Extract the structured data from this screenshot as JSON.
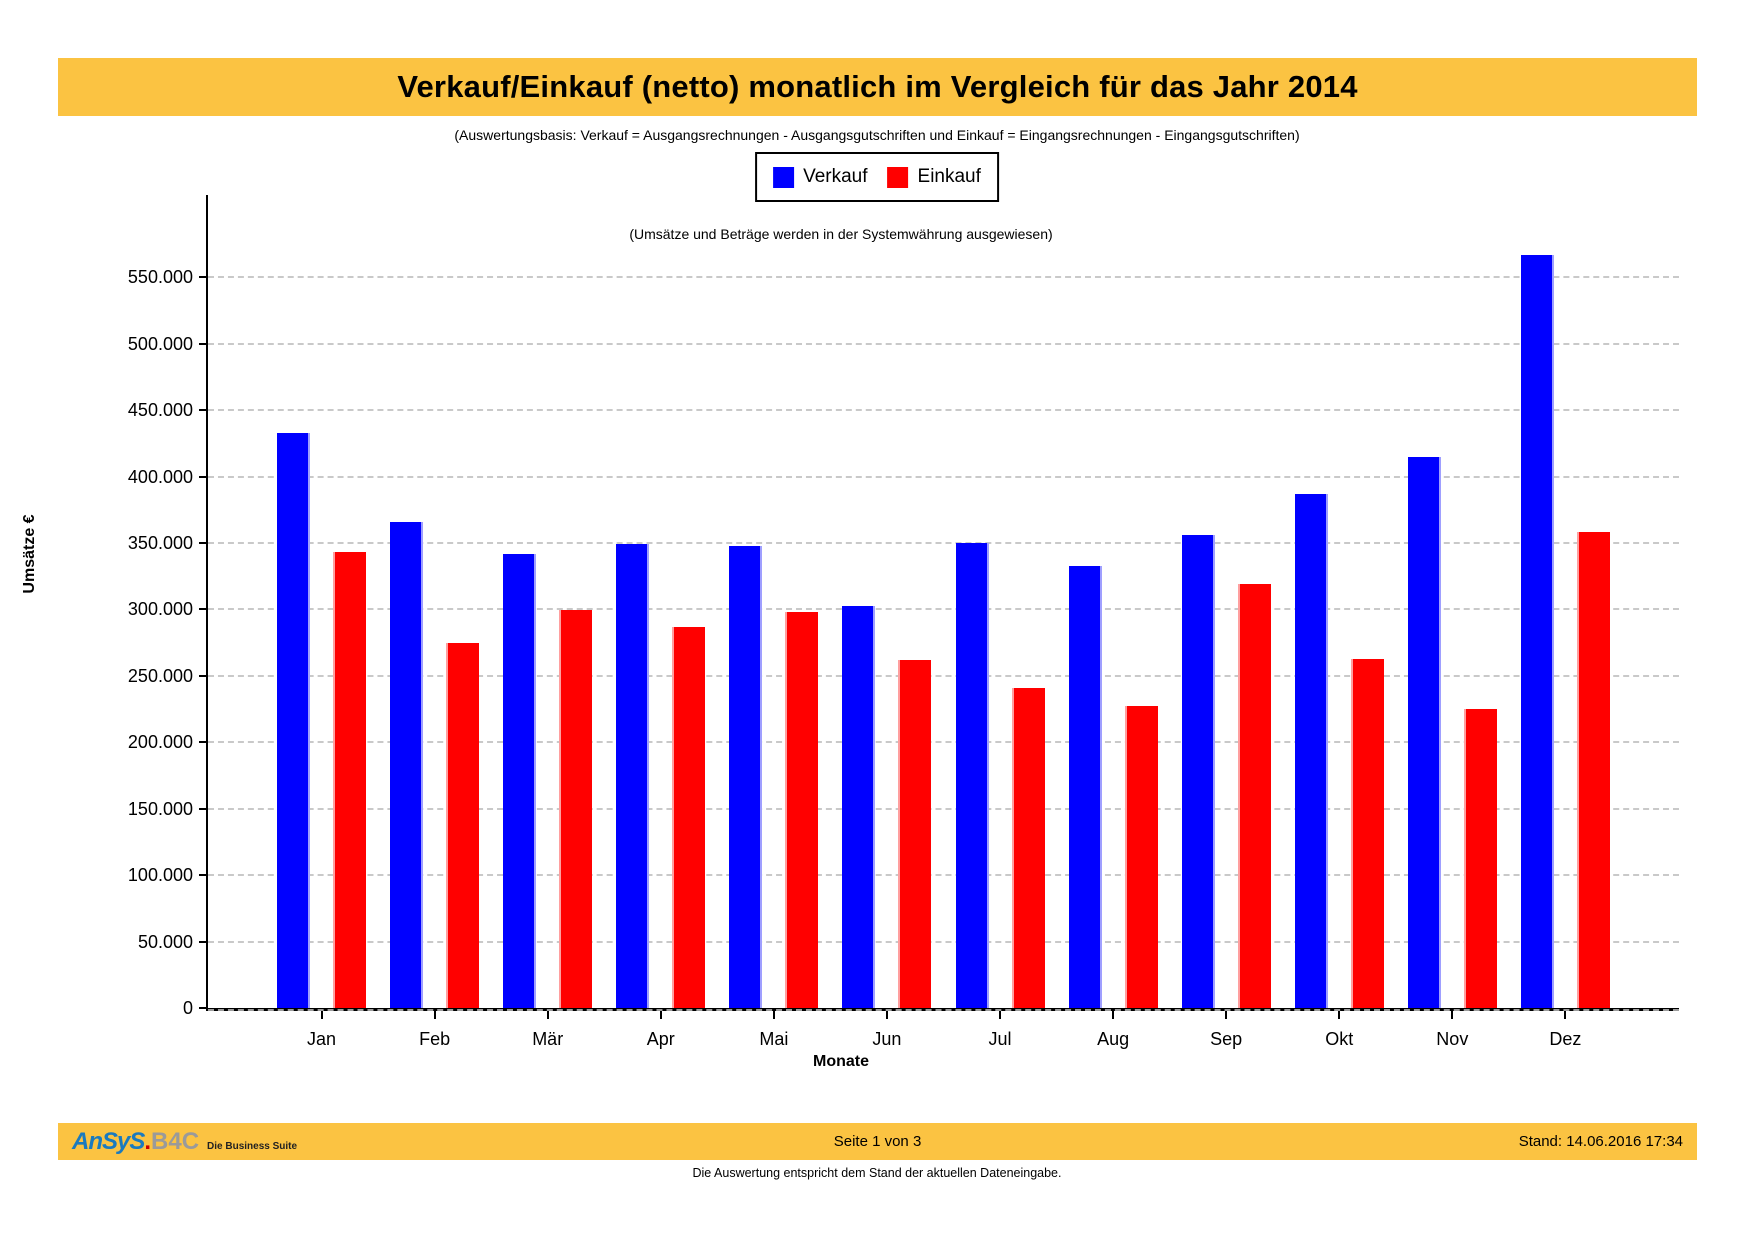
{
  "title": "Verkauf/Einkauf (netto) monatlich im Vergleich für das Jahr 2014",
  "subtitle": "(Auswertungsbasis: Verkauf = Ausgangsrechnungen - Ausgangsgutschriften und Einkauf = Eingangsrechnungen - Eingangsgutschriften)",
  "note": "(Umsätze und Beträge werden in der Systemwährung ausgewiesen)",
  "colors": {
    "banner": "#fbc342",
    "verkauf": "#0000ff",
    "einkauf": "#ff0000",
    "gridline": "#c9c9c9"
  },
  "chart_data": {
    "type": "bar",
    "title": "Verkauf/Einkauf (netto) monatlich im Vergleich für das Jahr 2014",
    "xlabel": "Monate",
    "ylabel": "Umsätze €",
    "categories": [
      "Jan",
      "Feb",
      "Mär",
      "Apr",
      "Mai",
      "Jun",
      "Jul",
      "Aug",
      "Sep",
      "Okt",
      "Nov",
      "Dez"
    ],
    "series": [
      {
        "name": "Verkauf",
        "color": "#0000ff",
        "values": [
          433000,
          366000,
          342000,
          349000,
          348000,
          303000,
          350000,
          333000,
          356000,
          387000,
          415000,
          567000
        ]
      },
      {
        "name": "Einkauf",
        "color": "#ff0000",
        "values": [
          343000,
          275000,
          300000,
          287000,
          298000,
          262000,
          241000,
          227000,
          319000,
          263000,
          225000,
          358000
        ]
      }
    ],
    "ylim": [
      0,
      612000
    ],
    "ytick_step": 50000,
    "ytick_labels": [
      "0",
      "50.000",
      "100.000",
      "150.000",
      "200.000",
      "250.000",
      "300.000",
      "350.000",
      "400.000",
      "450.000",
      "500.000",
      "550.000"
    ],
    "grid": "horizontal-dashed",
    "legend_position": "top-center"
  },
  "footer": {
    "logo_ansys": "AnSyS",
    "logo_dot": ".",
    "logo_b4c": "B4C",
    "logo_tagline": "Die Business Suite",
    "page": "Seite 1 von 3",
    "stand": "Stand: 14.06.2016  17:34",
    "disclaimer": "Die Auswertung entspricht dem Stand der aktuellen Dateneingabe."
  }
}
